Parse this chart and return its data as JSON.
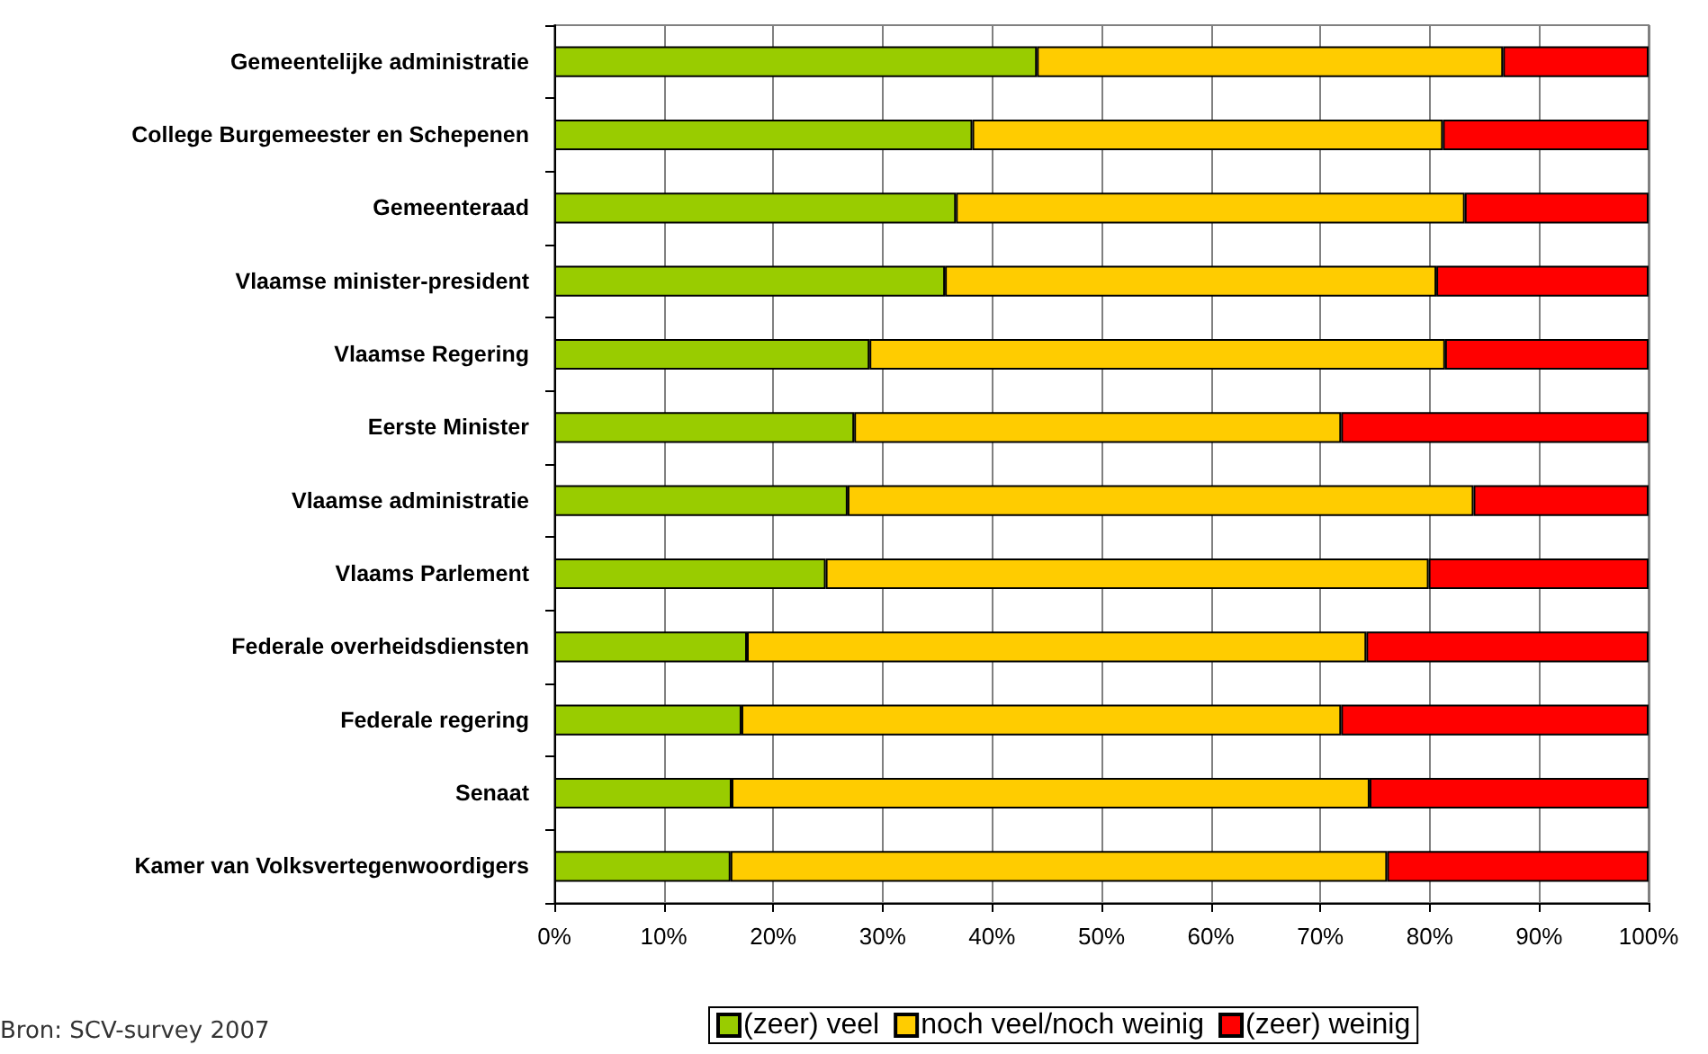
{
  "chart_data": {
    "type": "bar",
    "orientation": "horizontal",
    "stacked": true,
    "categories": [
      "Gemeentelijke administratie",
      "College Burgemeester en Schepenen",
      "Gemeenteraad",
      "Vlaamse minister-president",
      "Vlaamse Regering",
      "Eerste Minister",
      "Vlaamse administratie",
      "Vlaams Parlement",
      "Federale overheidsdiensten",
      "Federale regering",
      "Senaat",
      "Kamer van Volksvertegenwoordigers"
    ],
    "series": [
      {
        "name": "(zeer) veel",
        "color": "#99cc00",
        "values": [
          44.1,
          38.2,
          36.7,
          35.7,
          28.8,
          27.4,
          26.8,
          24.8,
          17.6,
          17.1,
          16.2,
          16.1
        ]
      },
      {
        "name": "noch veel/noch weinig",
        "color": "#ffcc00",
        "values": [
          42.6,
          43.0,
          46.5,
          44.9,
          52.6,
          44.5,
          57.2,
          55.1,
          56.6,
          54.8,
          58.3,
          60.0
        ]
      },
      {
        "name": "(zeer) weinig",
        "color": "#ff0000",
        "values": [
          13.3,
          18.8,
          16.8,
          19.4,
          18.6,
          28.1,
          16.0,
          20.1,
          25.8,
          28.1,
          25.5,
          23.9
        ]
      }
    ],
    "xlim": [
      0,
      100
    ],
    "xticks": [
      {
        "value": 0,
        "label": "0%"
      },
      {
        "value": 10,
        "label": "10%"
      },
      {
        "value": 20,
        "label": "20%"
      },
      {
        "value": 30,
        "label": "30%"
      },
      {
        "value": 40,
        "label": "40%"
      },
      {
        "value": 50,
        "label": "50%"
      },
      {
        "value": 60,
        "label": "60%"
      },
      {
        "value": 70,
        "label": "70%"
      },
      {
        "value": 80,
        "label": "80%"
      },
      {
        "value": 90,
        "label": "90%"
      },
      {
        "value": 100,
        "label": "100%"
      }
    ],
    "grid": "x",
    "legend": "bottom",
    "annotations": [
      "Bron: SCV-survey 2007"
    ]
  }
}
